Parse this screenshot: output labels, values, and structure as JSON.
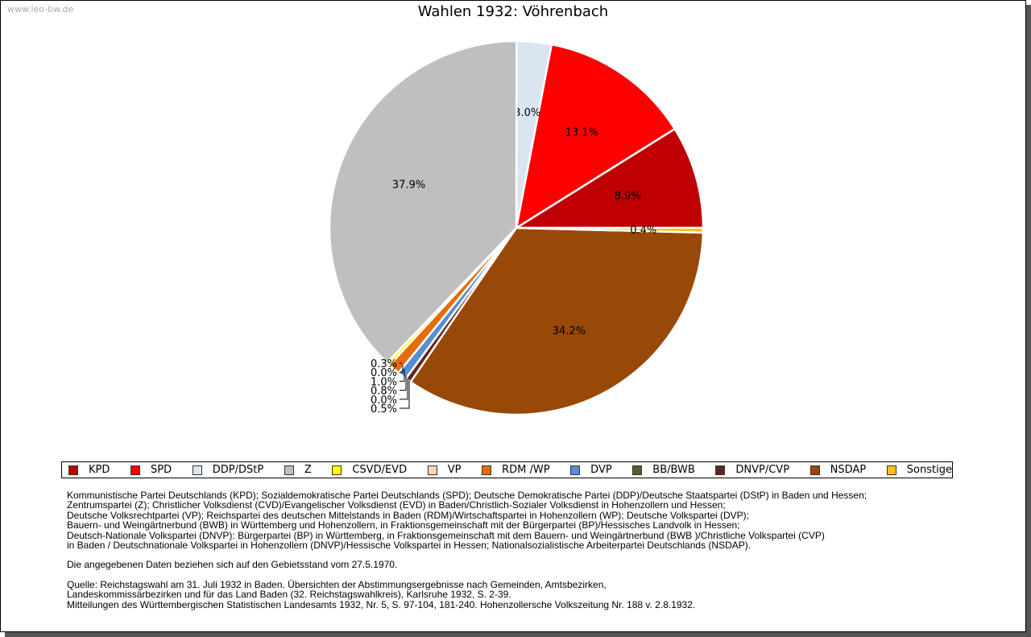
{
  "watermark": "www.leo-bw.de",
  "chart_data": {
    "type": "pie",
    "title": "Wahlen 1932: Vöhrenbach",
    "start": "east, counterclockwise",
    "slices": [
      {
        "label": "KPD",
        "value": 8.9,
        "text": "8.9%",
        "color": "#c00000"
      },
      {
        "label": "SPD",
        "value": 13.1,
        "text": "13.1%",
        "color": "#ff0000"
      },
      {
        "label": "DDP/DStP",
        "value": 3.0,
        "text": "3.0%",
        "color": "#dbe5f1"
      },
      {
        "label": "Z",
        "value": 37.9,
        "text": "37.9%",
        "color": "#bfbfbf"
      },
      {
        "label": "CSVD/EVD",
        "value": 0.3,
        "text": "0.3%",
        "color": "#ffff00"
      },
      {
        "label": "VP",
        "value": 0.0,
        "text": "0.0%",
        "color": "#fcd5b5"
      },
      {
        "label": "RDM /WP",
        "value": 1.0,
        "text": "1.0%",
        "color": "#e46c0a"
      },
      {
        "label": "DVP",
        "value": 0.8,
        "text": "0.8%",
        "color": "#558ed5"
      },
      {
        "label": "BB/BWB",
        "value": 0.0,
        "text": "0.0%",
        "color": "#4f6228"
      },
      {
        "label": "DNVP/CVP",
        "value": 0.5,
        "text": "0.5%",
        "color": "#632523"
      },
      {
        "label": "NSDAP",
        "value": 34.2,
        "text": "34.2%",
        "color": "#984807"
      },
      {
        "label": "Sonstige",
        "value": 0.4,
        "text": "0.4%",
        "color": "#ffc000"
      }
    ],
    "legend_position": "bottom"
  },
  "notes": {
    "parties": "Kommunistische Partei Deutschlands (KPD); Sozialdemokratische Partei Deutschlands (SPD); Deutsche Demokratische Partei (DDP)/Deutsche Staatspartei (DStP) in Baden und Hessen;\nZentrumspartei (Z); Christlicher Volksdienst (CVD)/Evangelischer Volksdienst (EVD) in Baden/Christlich-Sozialer Volksdienst in Hohenzollern und Hessen;\nDeutsche Volksrechtpartei (VP); Reichspartei des deutschen Mittelstands in Baden (RDM)/Wirtschaftspartei in Hohenzollern (WP); Deutsche Volkspartei (DVP);\nBauern- und Weingärtnerbund (BWB) in Württemberg und Hohenzollern, in Fraktionsgemeinschaft mit der Bürgerpartei (BP)/Hessisches Landvolk in Hessen;\nDeutsch-Nationale Volkspartei (DNVP): Bürgerpartei (BP) in Württemberg, in Fraktionsgemeinschaft mit dem Bauern- und Weingärtnerbund (BWB )/Christliche Volkspartei (CVP)\nin Baden / Deutschnationale Volkspartei in Hohenzollern (DNVP)/Hessische Volkspartei in Hessen; Nationalsozialistische Arbeiterpartei Deutschlands (NSDAP).",
    "gebietsstand": "Die angegebenen Daten beziehen sich auf den Gebietsstand vom 27.5.1970.",
    "quelle": "Quelle: Reichstagswahl am 31. Juli 1932 in Baden. Übersichten der Abstimmungsergebnisse nach Gemeinden, Amtsbezirken,\nLandeskommissärbezirken und für das Land Baden (32. Reichstagswahlkreis), Karlsruhe 1932, S. 2-39.\nMitteilungen des Württembergischen Statistischen Landesamts 1932, Nr. 5, S. 97-104, 181-240. Hohenzollersche Volkszeitung Nr. 188 v. 2.8.1932."
  }
}
